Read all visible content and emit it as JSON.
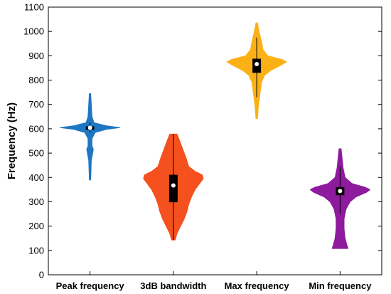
{
  "chart_data": {
    "type": "violin",
    "title": "",
    "xlabel": "",
    "ylabel": "Frequency (Hz)",
    "ylim": [
      0,
      1100
    ],
    "yticks": [
      0,
      100,
      200,
      300,
      400,
      500,
      600,
      700,
      800,
      900,
      1000,
      1100
    ],
    "grid": false,
    "categories": [
      "Peak frequency",
      "3dB bandwidth",
      "Max frequency",
      "Min frequency"
    ],
    "series": [
      {
        "category": "Peak frequency",
        "color": "#1f77c4",
        "min": 390,
        "max": 745,
        "q1": 596,
        "median": 604,
        "q3": 610,
        "whisker_low": 585,
        "whisker_high": 625,
        "density": [
          [
            390,
            1
          ],
          [
            430,
            1.5
          ],
          [
            470,
            2
          ],
          [
            500,
            4
          ],
          [
            515,
            5
          ],
          [
            530,
            3
          ],
          [
            560,
            3
          ],
          [
            585,
            8
          ],
          [
            598,
            25
          ],
          [
            605,
            45
          ],
          [
            612,
            25
          ],
          [
            625,
            6
          ],
          [
            650,
            3
          ],
          [
            700,
            2
          ],
          [
            745,
            1
          ]
        ]
      },
      {
        "category": "3dB bandwidth",
        "color": "#f4511e",
        "min": 143,
        "max": 578,
        "q1": 298,
        "median": 367,
        "q3": 411,
        "whisker_low": 143,
        "whisker_high": 578,
        "density": [
          [
            143,
            2
          ],
          [
            170,
            4
          ],
          [
            200,
            8
          ],
          [
            230,
            12
          ],
          [
            260,
            15
          ],
          [
            290,
            17
          ],
          [
            320,
            20
          ],
          [
            350,
            24
          ],
          [
            380,
            30
          ],
          [
            395,
            33
          ],
          [
            410,
            32
          ],
          [
            425,
            24
          ],
          [
            445,
            17
          ],
          [
            480,
            14
          ],
          [
            520,
            10
          ],
          [
            550,
            7
          ],
          [
            578,
            4
          ]
        ]
      },
      {
        "category": "Max frequency",
        "color": "#fbb116",
        "min": 642,
        "max": 1035,
        "q1": 830,
        "median": 866,
        "q3": 888,
        "whisker_low": 730,
        "whisker_high": 975,
        "density": [
          [
            642,
            1
          ],
          [
            690,
            2
          ],
          [
            740,
            4
          ],
          [
            790,
            6
          ],
          [
            820,
            10
          ],
          [
            840,
            18
          ],
          [
            860,
            30
          ],
          [
            875,
            38
          ],
          [
            885,
            32
          ],
          [
            900,
            14
          ],
          [
            925,
            8
          ],
          [
            960,
            6
          ],
          [
            1000,
            3
          ],
          [
            1035,
            1
          ]
        ]
      },
      {
        "category": "Min frequency",
        "color": "#8e1a9e",
        "min": 108,
        "max": 518,
        "q1": 327,
        "median": 344,
        "q3": 360,
        "whisker_low": 250,
        "whisker_high": 445,
        "density": [
          [
            108,
            8
          ],
          [
            120,
            7
          ],
          [
            150,
            5
          ],
          [
            190,
            4
          ],
          [
            230,
            4
          ],
          [
            270,
            6
          ],
          [
            300,
            10
          ],
          [
            320,
            16
          ],
          [
            340,
            27
          ],
          [
            350,
            30
          ],
          [
            360,
            25
          ],
          [
            375,
            12
          ],
          [
            400,
            5
          ],
          [
            440,
            3
          ],
          [
            480,
            2
          ],
          [
            518,
            1
          ]
        ]
      }
    ]
  }
}
